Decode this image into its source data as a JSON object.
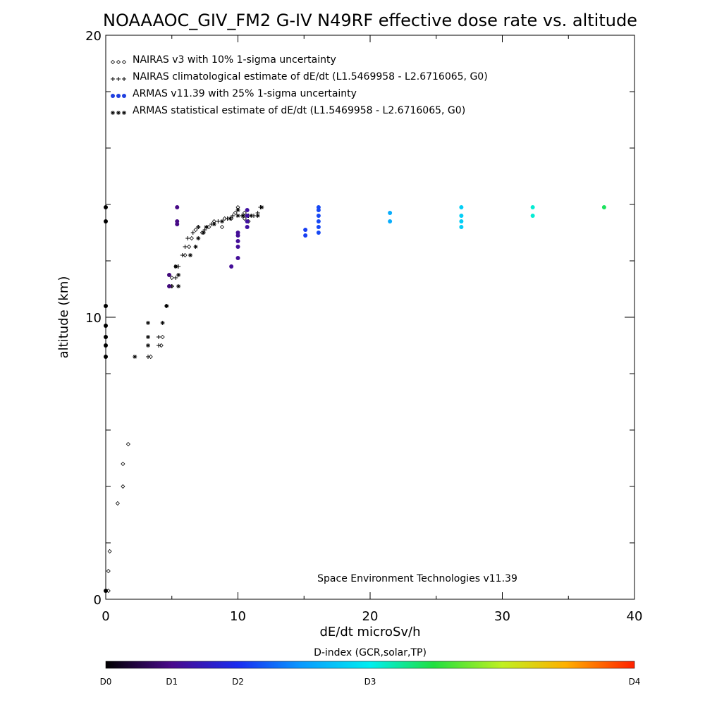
{
  "chart_data": {
    "type": "scatter",
    "title": "NOAAAOC_GIV_FM2 G-IV   N49RF  effective dose rate vs. altitude",
    "xlabel": "dE/dt microSv/h",
    "ylabel": "altitude (km)",
    "xlim": [
      0,
      40
    ],
    "ylim": [
      0,
      20
    ],
    "x_ticks": [
      "0",
      "10",
      "20",
      "30",
      "40"
    ],
    "y_ticks": [
      "0",
      "10",
      "20"
    ],
    "x_tick_values": [
      0,
      10,
      20,
      30,
      40
    ],
    "y_tick_values": [
      0,
      10,
      20
    ],
    "x_minor_step": 5,
    "y_minor_step": 2,
    "grid": false,
    "legend_position": "top-left",
    "legend": [
      {
        "symbol": "◇◇◇",
        "label": "NAIRAS v3 with 10% 1-sigma uncertainty",
        "marker": "diamond",
        "color": "#000000"
      },
      {
        "symbol": "+++",
        "label": "NAIRAS climatological estimate of dE/dt (L1.5469958 - L2.6716065, G0)",
        "marker": "plus",
        "color": "#000000"
      },
      {
        "symbol": "●●●",
        "label": "ARMAS v11.39 with 25% 1-sigma uncertainty",
        "marker": "dot",
        "color": "#1f3fe0"
      },
      {
        "symbol": "***",
        "label": "ARMAS statistical estimate of dE/dt (L1.5469958 - L2.6716065, G0)",
        "marker": "star",
        "color": "#000000"
      }
    ],
    "annotation": "Space Environment Technologies v11.39",
    "colorbar": {
      "title": "D-index (GCR,solar,TP)",
      "labels": [
        "D0",
        "D1",
        "D2",
        "D3",
        "D4"
      ],
      "label_positions": [
        0,
        0.125,
        0.25,
        0.5,
        1.0
      ]
    },
    "series": [
      {
        "name": "NAIRAS v3 with 10% 1-sigma uncertainty",
        "marker": "diamond",
        "points": [
          [
            0.2,
            0.3
          ],
          [
            0.2,
            1.0
          ],
          [
            0.3,
            1.7
          ],
          [
            0.9,
            3.4
          ],
          [
            1.3,
            4.0
          ],
          [
            1.3,
            4.8
          ],
          [
            1.7,
            5.5
          ],
          [
            3.4,
            8.6
          ],
          [
            4.2,
            9.0
          ],
          [
            4.3,
            9.3
          ],
          [
            4.6,
            10.4
          ],
          [
            5.0,
            11.1
          ],
          [
            5.0,
            11.4
          ],
          [
            5.3,
            11.8
          ],
          [
            6.0,
            12.2
          ],
          [
            6.3,
            12.5
          ],
          [
            6.5,
            12.8
          ],
          [
            6.8,
            13.1
          ],
          [
            7.0,
            13.2
          ],
          [
            7.3,
            13.0
          ],
          [
            7.8,
            13.2
          ],
          [
            8.2,
            13.4
          ],
          [
            8.8,
            13.2
          ],
          [
            9.0,
            13.5
          ],
          [
            9.5,
            13.5
          ],
          [
            9.8,
            13.7
          ],
          [
            10.5,
            13.7
          ],
          [
            10.5,
            13.5
          ],
          [
            10.8,
            13.4
          ],
          [
            10.0,
            13.9
          ]
        ]
      },
      {
        "name": "NAIRAS climatological estimate of dE/dt (L1.5469958 - L2.6716065, G0)",
        "marker": "plus",
        "points": [
          [
            3.2,
            8.6
          ],
          [
            4.0,
            9.0
          ],
          [
            4.0,
            9.3
          ],
          [
            4.6,
            10.4
          ],
          [
            5.0,
            11.1
          ],
          [
            5.3,
            11.4
          ],
          [
            5.5,
            11.8
          ],
          [
            5.8,
            12.2
          ],
          [
            6.0,
            12.5
          ],
          [
            6.2,
            12.8
          ],
          [
            6.6,
            13.0
          ],
          [
            7.0,
            13.2
          ],
          [
            7.5,
            13.1
          ],
          [
            8.0,
            13.3
          ],
          [
            8.5,
            13.4
          ],
          [
            9.2,
            13.5
          ],
          [
            9.6,
            13.6
          ],
          [
            10.3,
            13.6
          ],
          [
            10.8,
            13.6
          ],
          [
            11.2,
            13.6
          ],
          [
            11.7,
            13.9
          ],
          [
            11.5,
            13.7
          ]
        ]
      },
      {
        "name": "ARMAS v11.39 with 25% 1-sigma uncertainty",
        "marker": "dot",
        "points": [
          {
            "x": 0.0,
            "y": 0.3,
            "d": 0.0
          },
          {
            "x": 0.0,
            "y": 8.6,
            "d": 0.0
          },
          {
            "x": 0.0,
            "y": 9.0,
            "d": 0.0
          },
          {
            "x": 0.0,
            "y": 9.3,
            "d": 0.0
          },
          {
            "x": 0.0,
            "y": 9.7,
            "d": 0.0
          },
          {
            "x": 0.0,
            "y": 10.4,
            "d": 0.0
          },
          {
            "x": 0.0,
            "y": 13.4,
            "d": 0.0
          },
          {
            "x": 0.0,
            "y": 13.9,
            "d": 0.0
          },
          {
            "x": 4.8,
            "y": 11.1,
            "d": 0.11
          },
          {
            "x": 4.8,
            "y": 11.5,
            "d": 0.11
          },
          {
            "x": 5.4,
            "y": 13.3,
            "d": 0.12
          },
          {
            "x": 5.4,
            "y": 13.4,
            "d": 0.12
          },
          {
            "x": 5.4,
            "y": 13.9,
            "d": 0.12
          },
          {
            "x": 9.5,
            "y": 11.8,
            "d": 0.14
          },
          {
            "x": 10.0,
            "y": 12.1,
            "d": 0.14
          },
          {
            "x": 10.0,
            "y": 12.5,
            "d": 0.14
          },
          {
            "x": 10.0,
            "y": 12.7,
            "d": 0.14
          },
          {
            "x": 10.0,
            "y": 12.9,
            "d": 0.14
          },
          {
            "x": 10.0,
            "y": 13.0,
            "d": 0.14
          },
          {
            "x": 10.7,
            "y": 13.2,
            "d": 0.15
          },
          {
            "x": 10.7,
            "y": 13.4,
            "d": 0.15
          },
          {
            "x": 10.7,
            "y": 13.6,
            "d": 0.15
          },
          {
            "x": 10.7,
            "y": 13.8,
            "d": 0.15
          },
          {
            "x": 15.1,
            "y": 12.9,
            "d": 0.27
          },
          {
            "x": 15.1,
            "y": 13.1,
            "d": 0.27
          },
          {
            "x": 16.1,
            "y": 13.0,
            "d": 0.28
          },
          {
            "x": 16.1,
            "y": 13.2,
            "d": 0.28
          },
          {
            "x": 16.1,
            "y": 13.4,
            "d": 0.28
          },
          {
            "x": 16.1,
            "y": 13.6,
            "d": 0.28
          },
          {
            "x": 16.1,
            "y": 13.8,
            "d": 0.28
          },
          {
            "x": 16.1,
            "y": 13.9,
            "d": 0.28
          },
          {
            "x": 21.5,
            "y": 13.4,
            "d": 0.4
          },
          {
            "x": 21.5,
            "y": 13.7,
            "d": 0.4
          },
          {
            "x": 26.9,
            "y": 13.2,
            "d": 0.45
          },
          {
            "x": 26.9,
            "y": 13.4,
            "d": 0.45
          },
          {
            "x": 26.9,
            "y": 13.6,
            "d": 0.45
          },
          {
            "x": 26.9,
            "y": 13.9,
            "d": 0.45
          },
          {
            "x": 32.3,
            "y": 13.6,
            "d": 0.52
          },
          {
            "x": 32.3,
            "y": 13.9,
            "d": 0.52
          },
          {
            "x": 37.7,
            "y": 13.9,
            "d": 0.6
          }
        ]
      },
      {
        "name": "ARMAS statistical estimate of dE/dt (L1.5469958 - L2.6716065, G0)",
        "marker": "star",
        "points": [
          [
            2.2,
            8.6
          ],
          [
            3.2,
            9.0
          ],
          [
            3.2,
            9.3
          ],
          [
            3.2,
            9.8
          ],
          [
            4.3,
            9.8
          ],
          [
            4.6,
            10.4
          ],
          [
            5.5,
            11.1
          ],
          [
            5.5,
            11.5
          ],
          [
            5.3,
            11.8
          ],
          [
            6.4,
            12.2
          ],
          [
            6.8,
            12.5
          ],
          [
            7.0,
            12.8
          ],
          [
            7.4,
            13.0
          ],
          [
            7.6,
            13.2
          ],
          [
            8.2,
            13.3
          ],
          [
            8.8,
            13.4
          ],
          [
            9.4,
            13.5
          ],
          [
            10.0,
            13.6
          ],
          [
            10.4,
            13.6
          ],
          [
            11.0,
            13.6
          ],
          [
            11.5,
            13.6
          ],
          [
            11.8,
            13.9
          ],
          [
            10.0,
            13.8
          ]
        ]
      }
    ]
  }
}
